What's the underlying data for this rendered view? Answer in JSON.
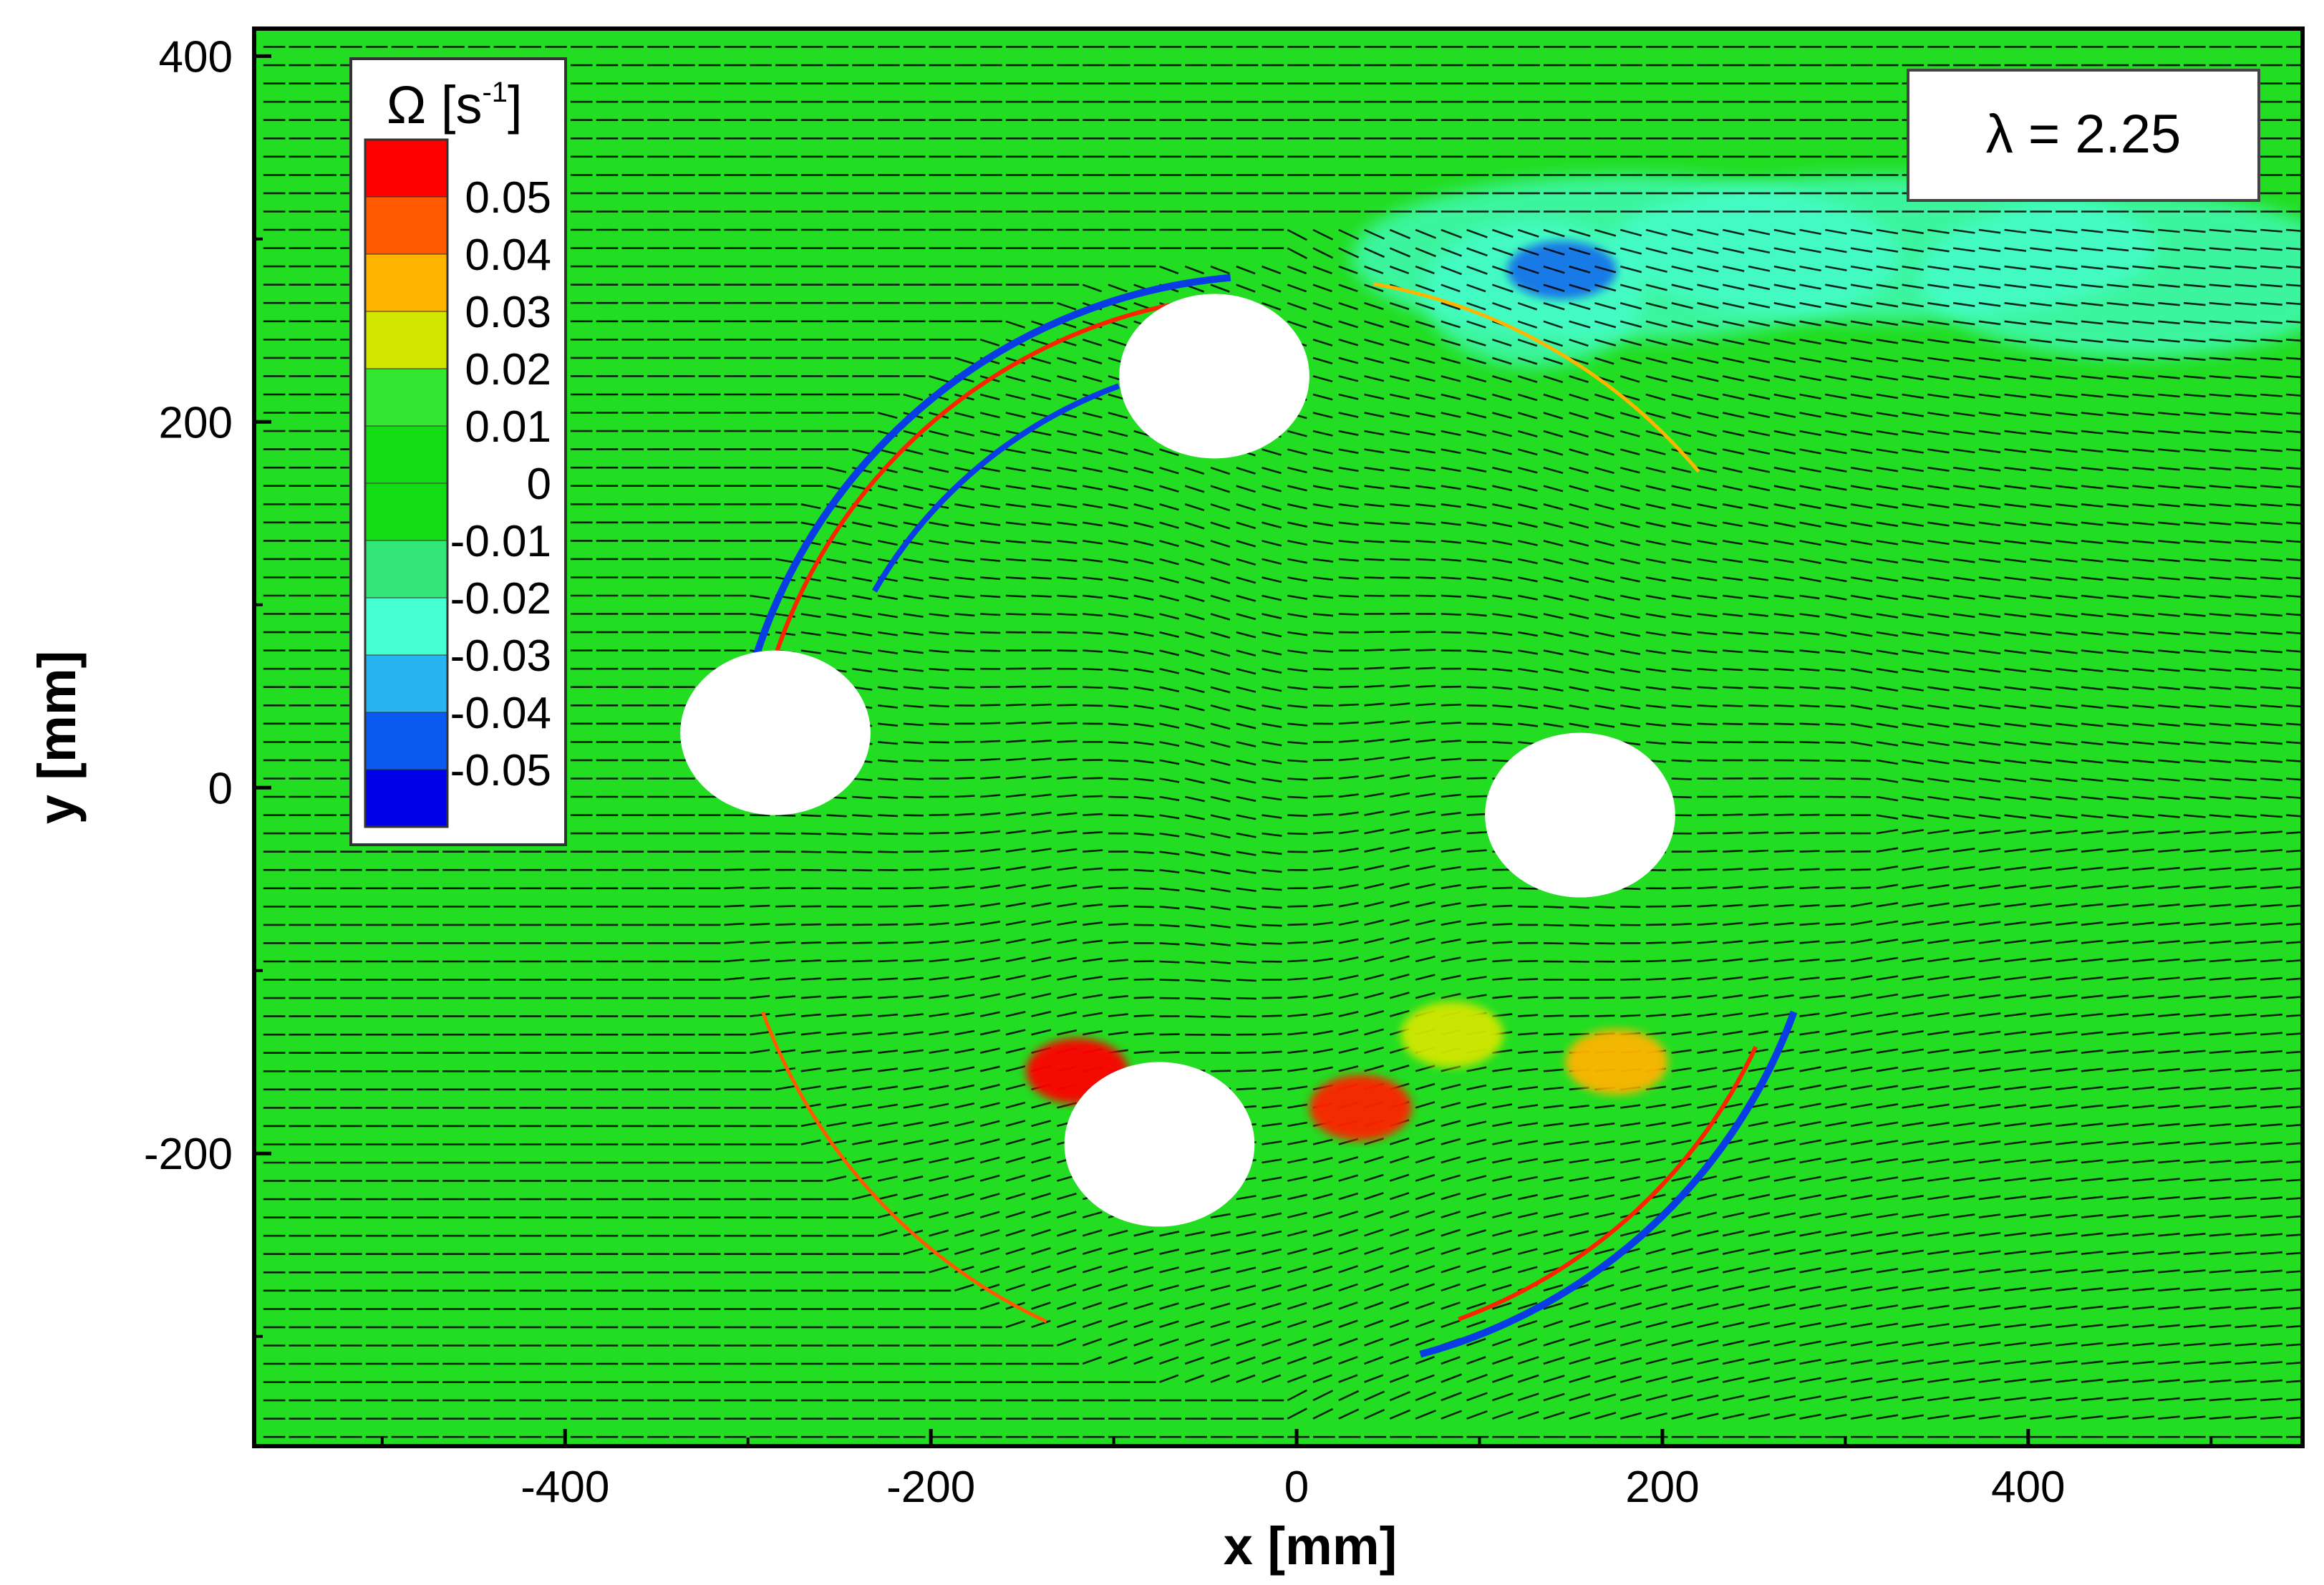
{
  "chart_data": {
    "type": "heatmap",
    "title": "",
    "xlabel": "x [mm]",
    "ylabel": "y [mm]",
    "xlim": [
      -570,
      550
    ],
    "ylim": [
      -360,
      415
    ],
    "x_ticks": [
      -400,
      -200,
      0,
      200,
      400
    ],
    "x_tick_labels": [
      "-400",
      "-200",
      "0",
      "200",
      "400"
    ],
    "y_ticks": [
      -200,
      0,
      200,
      400
    ],
    "y_tick_labels": [
      "-200",
      "0",
      "200",
      "400"
    ],
    "annotation": "λ = 2.25",
    "colorbar": {
      "title": "Ω [s",
      "title_superscript": "-1",
      "title_close": "]",
      "placement": "top-left",
      "levels": [
        "0.05",
        "0.04",
        "0.03",
        "0.02",
        "0.01",
        "0",
        "-0.01",
        "-0.02",
        "-0.03",
        "-0.04",
        "-0.05"
      ],
      "colors": [
        "#ff0000",
        "#ff5a00",
        "#ffb400",
        "#d2e600",
        "#32e632",
        "#14dc14",
        "#14dc14",
        "#32e678",
        "#46ffd2",
        "#28b4f0",
        "#0a5af0",
        "#0000e6"
      ]
    },
    "field": {
      "background_color": "#22dd22",
      "arrow_color": "#000000",
      "rotor_center": [
        -10,
        -20
      ],
      "rotor_radius": 300,
      "blades": [
        {
          "x": -45,
          "y": 225
        },
        {
          "x": -285,
          "y": 30
        },
        {
          "x": 155,
          "y": -15
        },
        {
          "x": -75,
          "y": -195
        }
      ],
      "vortices": [
        {
          "x": -120,
          "y": -155,
          "color": "#ff0000"
        },
        {
          "x": 35,
          "y": -175,
          "color": "#ff2200"
        },
        {
          "x": 175,
          "y": -150,
          "color": "#ffb400"
        },
        {
          "x": 85,
          "y": -135,
          "color": "#d2e600"
        }
      ],
      "wake_color": "#46ffd2"
    }
  }
}
